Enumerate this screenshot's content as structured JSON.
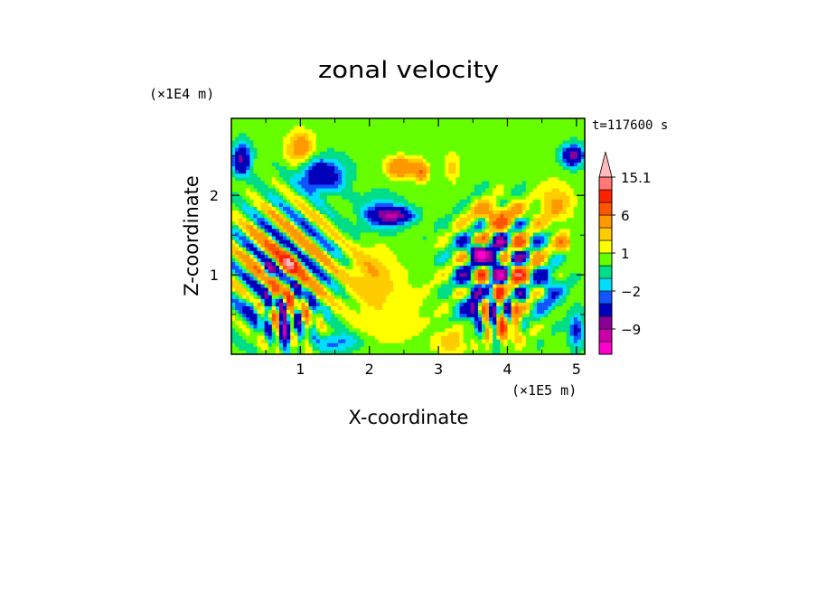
{
  "chart_data": {
    "type": "heatmap",
    "title": "zonal velocity",
    "xlabel": "X-coordinate",
    "ylabel": "Z-coordinate",
    "x_unit": "(×1E5 m)",
    "y_unit": "(×1E4 m)",
    "time_label": "t=117600 s",
    "xlim": [
      0,
      5.12
    ],
    "ylim": [
      0,
      2.97
    ],
    "xticks": [
      1,
      2,
      3,
      4,
      5
    ],
    "xtick_labels": [
      "1",
      "2",
      "3",
      "4",
      "5"
    ],
    "yticks": [
      1,
      2
    ],
    "ytick_labels": [
      "1",
      "2"
    ],
    "colorbar": {
      "levels": [
        -15,
        -12,
        -9,
        -6,
        -3,
        -2,
        -1,
        0,
        1,
        2,
        3,
        6,
        9,
        12,
        15.1
      ],
      "colors": [
        "#ff00cc",
        "#cc00aa",
        "#880099",
        "#0000bb",
        "#1155ff",
        "#00ddff",
        "#00dd88",
        "#66ff00",
        "#ffff00",
        "#ffcc00",
        "#ff9900",
        "#ff5500",
        "#ff2200",
        "#ff7777",
        "#ffbbbb"
      ],
      "labels": [
        "15.1",
        "6",
        "1",
        "−2",
        "−9"
      ],
      "label_values": [
        15.1,
        6,
        1,
        -2,
        -9
      ],
      "extend": "max"
    },
    "features": [
      {
        "kind": "background",
        "value": 0.3
      },
      {
        "kind": "blob",
        "x": 2.3,
        "z": 0.55,
        "sx": 0.6,
        "sz": 0.5,
        "value": 1.4
      },
      {
        "kind": "blob",
        "x": 2.0,
        "z": 1.05,
        "sx": 0.35,
        "sz": 0.35,
        "value": 2.2
      },
      {
        "kind": "blob",
        "x": 2.45,
        "z": 2.35,
        "sx": 0.2,
        "sz": 0.13,
        "value": 5.0
      },
      {
        "kind": "blob",
        "x": 2.75,
        "z": 2.3,
        "sx": 0.1,
        "sz": 0.12,
        "value": 5.5
      },
      {
        "kind": "blob",
        "x": 2.35,
        "z": 1.75,
        "sx": 0.25,
        "sz": 0.09,
        "value": -8.0
      },
      {
        "kind": "blob",
        "x": 2.15,
        "z": 1.75,
        "sx": 0.3,
        "sz": 0.22,
        "value": -3.0
      },
      {
        "kind": "blob",
        "x": 3.2,
        "z": 2.35,
        "sx": 0.12,
        "sz": 0.2,
        "value": 2.0
      },
      {
        "kind": "blob",
        "x": 3.4,
        "z": 0.9,
        "sx": 0.15,
        "sz": 0.45,
        "value": -2.5
      },
      {
        "kind": "blob",
        "x": 3.2,
        "z": 0.15,
        "sx": 0.25,
        "sz": 0.15,
        "value": 2.5
      },
      {
        "kind": "blob",
        "x": 0.85,
        "z": 1.15,
        "sx": 0.12,
        "sz": 0.12,
        "value": 7.0
      },
      {
        "kind": "blob",
        "x": 0.7,
        "z": 1.1,
        "sx": 0.35,
        "sz": 0.35,
        "value": 3.0
      },
      {
        "kind": "blob",
        "x": 0.8,
        "z": 0.3,
        "sx": 0.1,
        "sz": 0.12,
        "value": -9.0
      },
      {
        "kind": "blob",
        "x": 0.55,
        "z": 1.05,
        "sx": 0.08,
        "sz": 0.12,
        "value": -8.0
      },
      {
        "kind": "blob",
        "x": 0.15,
        "z": 2.45,
        "sx": 0.12,
        "sz": 0.18,
        "value": -7.0
      },
      {
        "kind": "blob",
        "x": 0.35,
        "z": 0.6,
        "sx": 0.25,
        "sz": 0.25,
        "value": -2.5
      },
      {
        "kind": "blob",
        "x": 1.3,
        "z": 2.25,
        "sx": 0.3,
        "sz": 0.2,
        "value": -6.0
      },
      {
        "kind": "blob",
        "x": 1.0,
        "z": 2.6,
        "sx": 0.2,
        "sz": 0.2,
        "value": 4.0
      },
      {
        "kind": "blob",
        "x": 1.55,
        "z": 0.15,
        "sx": 0.3,
        "sz": 0.12,
        "value": -3.0
      },
      {
        "kind": "blob",
        "x": 3.85,
        "z": 1.2,
        "sx": 0.12,
        "sz": 0.12,
        "value": -12.0
      },
      {
        "kind": "blob",
        "x": 3.6,
        "z": 1.3,
        "sx": 0.12,
        "sz": 0.1,
        "value": -9.0
      },
      {
        "kind": "blob",
        "x": 4.15,
        "z": 1.0,
        "sx": 0.15,
        "sz": 0.25,
        "value": 3.0
      },
      {
        "kind": "blob",
        "x": 3.85,
        "z": 1.75,
        "sx": 0.35,
        "sz": 0.15,
        "value": 4.5
      },
      {
        "kind": "blob",
        "x": 4.0,
        "z": 0.3,
        "sx": 0.2,
        "sz": 0.15,
        "value": 4.0
      },
      {
        "kind": "blob",
        "x": 3.5,
        "z": 0.55,
        "sx": 0.08,
        "sz": 0.12,
        "value": -8.0
      },
      {
        "kind": "blob",
        "x": 4.95,
        "z": 2.5,
        "sx": 0.14,
        "sz": 0.12,
        "value": -8.0
      },
      {
        "kind": "blob",
        "x": 4.7,
        "z": 1.9,
        "sx": 0.25,
        "sz": 0.25,
        "value": 3.0
      },
      {
        "kind": "blob",
        "x": 4.6,
        "z": 0.8,
        "sx": 0.2,
        "sz": 0.25,
        "value": -3.0
      },
      {
        "kind": "blob",
        "x": 5.0,
        "z": 0.3,
        "sx": 0.1,
        "sz": 0.2,
        "value": -4.0
      },
      {
        "kind": "blob",
        "x": 4.8,
        "z": 1.4,
        "sx": 0.1,
        "sz": 0.1,
        "value": 5.0
      },
      {
        "kind": "wave",
        "x0": 0.75,
        "z0": 1.1,
        "dir": [
          1,
          1.3
        ],
        "k": 9,
        "radius": 0.75,
        "amp": 7
      },
      {
        "kind": "wave",
        "x0": 3.9,
        "z0": 1.1,
        "dir": [
          -1,
          1.3
        ],
        "k": 9,
        "radius": 0.65,
        "amp": 7
      },
      {
        "kind": "wave",
        "x0": 3.9,
        "z0": 1.1,
        "dir": [
          1,
          1.3
        ],
        "k": 9,
        "radius": 0.55,
        "amp": 6
      },
      {
        "kind": "wave",
        "x0": 0.8,
        "z0": 0.5,
        "dir": [
          1,
          0.1
        ],
        "k": 14,
        "radius": 0.35,
        "amp": 6
      },
      {
        "kind": "wave",
        "x0": 3.85,
        "z0": 0.5,
        "dir": [
          1,
          0.1
        ],
        "k": 14,
        "radius": 0.3,
        "amp": 6
      }
    ]
  }
}
